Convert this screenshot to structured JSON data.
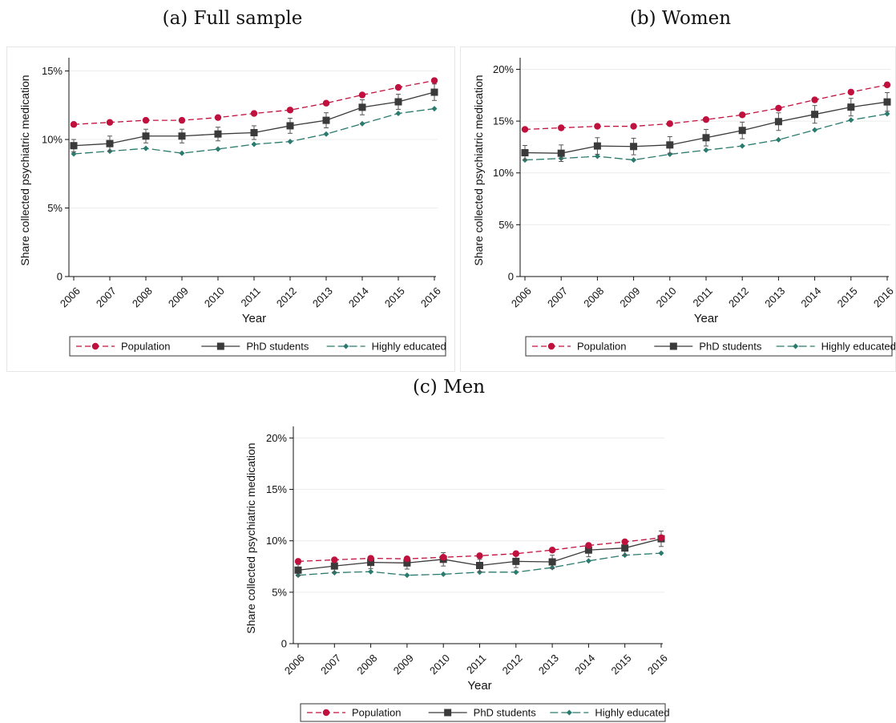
{
  "panels": [
    {
      "title": "(a) Full sample"
    },
    {
      "title": "(b) Women"
    },
    {
      "title": "(c) Men"
    }
  ],
  "colors": {
    "population": "#c0103e",
    "phd": "#3a3a3a",
    "highly": "#2a7a6e",
    "grid": "#ececec",
    "axis": "#111111"
  },
  "chart_data": [
    {
      "type": "line",
      "x": [
        2006,
        2007,
        2008,
        2009,
        2010,
        2011,
        2012,
        2013,
        2014,
        2015,
        2016
      ],
      "xlabel": "Year",
      "ylabel": "Share collected psychiatric medication",
      "ylim": [
        0,
        15.5
      ],
      "yticks": [
        0,
        5,
        10,
        15
      ],
      "yticklabels": [
        "0",
        "5%",
        "10%",
        "15%"
      ],
      "legend_position": "bottom",
      "series": [
        {
          "name": "Population",
          "values": [
            11.1,
            11.25,
            11.4,
            11.4,
            11.6,
            11.9,
            12.15,
            12.65,
            13.25,
            13.8,
            14.3
          ]
        },
        {
          "name": "PhD students",
          "values": [
            9.55,
            9.7,
            10.25,
            10.25,
            10.4,
            10.5,
            11.0,
            11.4,
            12.35,
            12.75,
            13.45
          ],
          "err": [
            0.45,
            0.55,
            0.5,
            0.5,
            0.5,
            0.5,
            0.55,
            0.55,
            0.55,
            0.55,
            0.6
          ]
        },
        {
          "name": "Highly educated",
          "values": [
            8.95,
            9.15,
            9.35,
            9.0,
            9.3,
            9.65,
            9.85,
            10.4,
            11.15,
            11.9,
            12.25
          ]
        }
      ]
    },
    {
      "type": "line",
      "x": [
        2006,
        2007,
        2008,
        2009,
        2010,
        2011,
        2012,
        2013,
        2014,
        2015,
        2016
      ],
      "xlabel": "Year",
      "ylabel": "Share collected psychiatric medication",
      "ylim": [
        0,
        20.5
      ],
      "yticks": [
        0,
        5,
        10,
        15,
        20
      ],
      "yticklabels": [
        "0",
        "5%",
        "10%",
        "15%",
        "20%"
      ],
      "legend_position": "bottom",
      "series": [
        {
          "name": "Population",
          "values": [
            14.2,
            14.35,
            14.5,
            14.5,
            14.75,
            15.15,
            15.6,
            16.25,
            17.05,
            17.8,
            18.5
          ]
        },
        {
          "name": "PhD students",
          "values": [
            11.95,
            11.9,
            12.6,
            12.55,
            12.7,
            13.4,
            14.1,
            14.95,
            15.65,
            16.35,
            16.85
          ],
          "err": [
            0.7,
            0.8,
            0.8,
            0.8,
            0.8,
            0.8,
            0.8,
            0.85,
            0.85,
            0.85,
            0.9
          ]
        },
        {
          "name": "Highly educated",
          "values": [
            11.25,
            11.4,
            11.6,
            11.25,
            11.8,
            12.2,
            12.6,
            13.2,
            14.15,
            15.1,
            15.7
          ]
        }
      ]
    },
    {
      "type": "line",
      "x": [
        2006,
        2007,
        2008,
        2009,
        2010,
        2011,
        2012,
        2013,
        2014,
        2015,
        2016
      ],
      "xlabel": "Year",
      "ylabel": "Share collected psychiatric medication",
      "ylim": [
        0,
        20.5
      ],
      "yticks": [
        0,
        5,
        10,
        15,
        20
      ],
      "yticklabels": [
        "0",
        "5%",
        "10%",
        "15%",
        "20%"
      ],
      "legend_position": "bottom",
      "series": [
        {
          "name": "Population",
          "values": [
            8.0,
            8.15,
            8.3,
            8.25,
            8.4,
            8.55,
            8.75,
            9.1,
            9.55,
            9.9,
            10.3
          ]
        },
        {
          "name": "PhD students",
          "values": [
            7.15,
            7.55,
            7.9,
            7.85,
            8.2,
            7.6,
            8.0,
            7.95,
            9.1,
            9.3,
            10.2
          ],
          "err": [
            0.55,
            0.6,
            0.6,
            0.6,
            0.65,
            0.6,
            0.6,
            0.65,
            0.65,
            0.7,
            0.75
          ]
        },
        {
          "name": "Highly educated",
          "values": [
            6.65,
            6.9,
            7.0,
            6.65,
            6.75,
            6.95,
            6.95,
            7.4,
            8.05,
            8.6,
            8.8
          ]
        }
      ]
    }
  ]
}
